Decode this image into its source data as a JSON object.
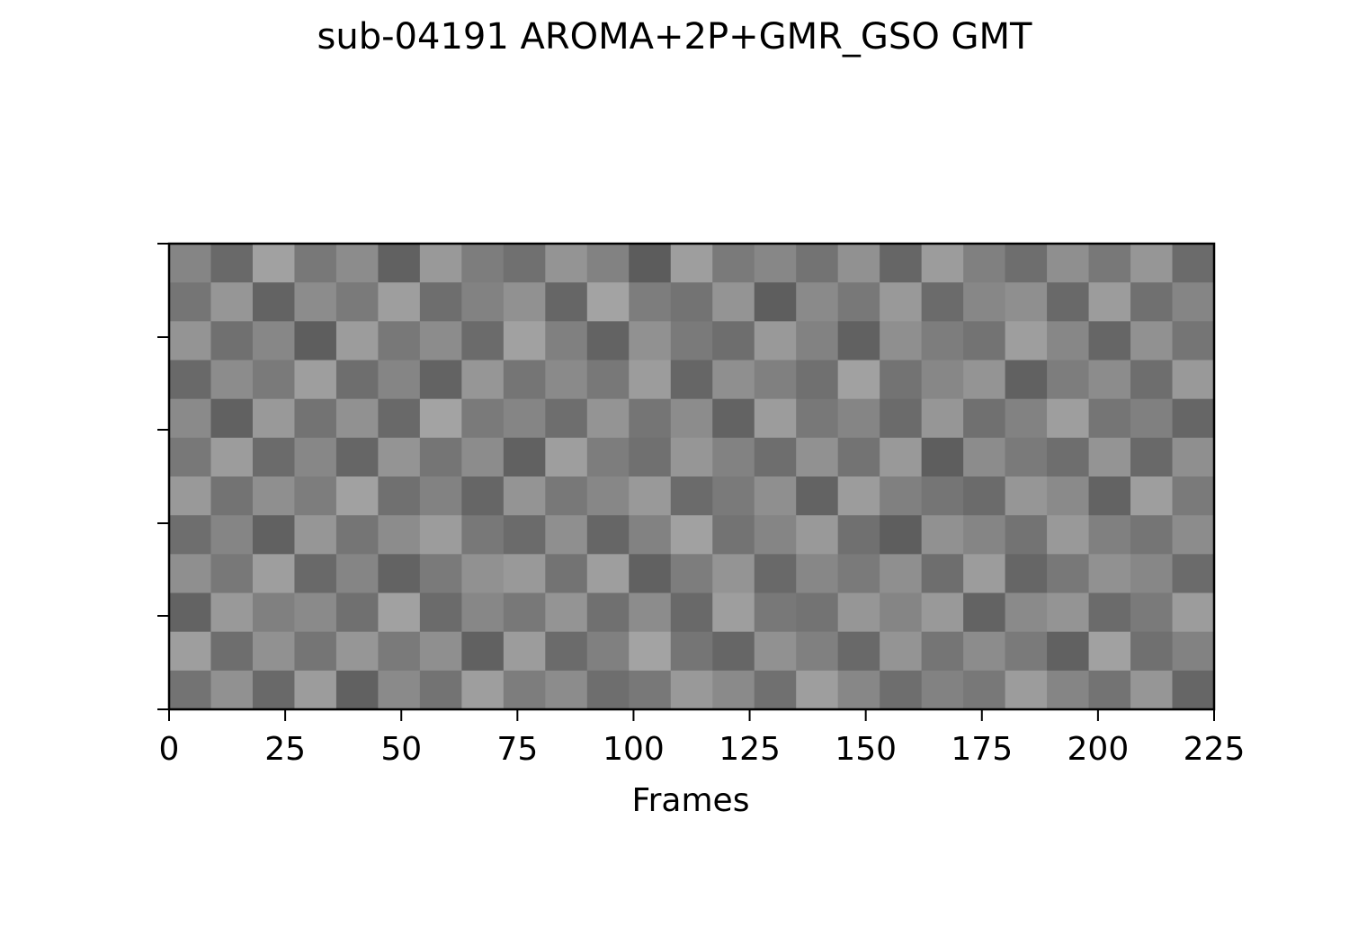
{
  "chart_data": {
    "type": "heatmap",
    "title": "sub-04191 AROMA+2P+GMR_GSO GMT",
    "xlabel": "Frames",
    "xlim": [
      0,
      225
    ],
    "xticks": [
      0,
      25,
      50,
      75,
      100,
      125,
      150,
      175,
      200,
      225
    ],
    "colormap": "gray",
    "zlim": [
      0,
      1
    ],
    "z": [
      [
        0.52,
        0.41,
        0.63,
        0.47,
        0.55,
        0.38,
        0.6,
        0.49,
        0.44,
        0.58,
        0.51,
        0.36,
        0.62,
        0.48,
        0.53,
        0.45,
        0.57,
        0.4,
        0.61,
        0.5,
        0.43,
        0.56,
        0.47,
        0.59,
        0.42
      ],
      [
        0.46,
        0.59,
        0.39,
        0.55,
        0.48,
        0.62,
        0.43,
        0.51,
        0.57,
        0.4,
        0.64,
        0.49,
        0.45,
        0.58,
        0.37,
        0.54,
        0.47,
        0.6,
        0.42,
        0.53,
        0.56,
        0.41,
        0.61,
        0.44,
        0.52
      ],
      [
        0.58,
        0.44,
        0.53,
        0.37,
        0.61,
        0.47,
        0.55,
        0.42,
        0.63,
        0.5,
        0.39,
        0.57,
        0.48,
        0.43,
        0.6,
        0.51,
        0.38,
        0.56,
        0.49,
        0.45,
        0.62,
        0.53,
        0.4,
        0.57,
        0.46
      ],
      [
        0.41,
        0.55,
        0.48,
        0.62,
        0.43,
        0.52,
        0.39,
        0.59,
        0.46,
        0.54,
        0.47,
        0.61,
        0.4,
        0.56,
        0.5,
        0.44,
        0.63,
        0.45,
        0.53,
        0.58,
        0.38,
        0.49,
        0.55,
        0.43,
        0.6
      ],
      [
        0.54,
        0.38,
        0.6,
        0.45,
        0.57,
        0.41,
        0.64,
        0.48,
        0.52,
        0.43,
        0.58,
        0.46,
        0.55,
        0.39,
        0.61,
        0.47,
        0.52,
        0.42,
        0.59,
        0.44,
        0.51,
        0.62,
        0.46,
        0.5,
        0.4
      ],
      [
        0.47,
        0.61,
        0.42,
        0.53,
        0.4,
        0.58,
        0.46,
        0.55,
        0.38,
        0.62,
        0.49,
        0.44,
        0.59,
        0.51,
        0.43,
        0.57,
        0.45,
        0.6,
        0.37,
        0.55,
        0.48,
        0.43,
        0.58,
        0.41,
        0.56
      ],
      [
        0.6,
        0.45,
        0.56,
        0.49,
        0.63,
        0.44,
        0.51,
        0.4,
        0.58,
        0.47,
        0.53,
        0.6,
        0.42,
        0.48,
        0.56,
        0.39,
        0.61,
        0.5,
        0.46,
        0.42,
        0.59,
        0.54,
        0.39,
        0.62,
        0.48
      ],
      [
        0.43,
        0.52,
        0.38,
        0.59,
        0.46,
        0.55,
        0.61,
        0.47,
        0.42,
        0.56,
        0.4,
        0.51,
        0.63,
        0.45,
        0.52,
        0.6,
        0.44,
        0.37,
        0.57,
        0.52,
        0.45,
        0.6,
        0.5,
        0.46,
        0.55
      ],
      [
        0.56,
        0.47,
        0.62,
        0.41,
        0.52,
        0.39,
        0.48,
        0.57,
        0.6,
        0.45,
        0.62,
        0.38,
        0.49,
        0.58,
        0.41,
        0.53,
        0.48,
        0.56,
        0.43,
        0.61,
        0.4,
        0.47,
        0.57,
        0.53,
        0.42
      ],
      [
        0.39,
        0.6,
        0.5,
        0.54,
        0.44,
        0.63,
        0.42,
        0.53,
        0.47,
        0.58,
        0.44,
        0.55,
        0.41,
        0.62,
        0.47,
        0.45,
        0.59,
        0.52,
        0.6,
        0.39,
        0.54,
        0.58,
        0.42,
        0.48,
        0.61
      ],
      [
        0.62,
        0.43,
        0.57,
        0.46,
        0.59,
        0.48,
        0.56,
        0.38,
        0.61,
        0.42,
        0.5,
        0.64,
        0.46,
        0.4,
        0.57,
        0.5,
        0.41,
        0.58,
        0.46,
        0.55,
        0.48,
        0.38,
        0.63,
        0.44,
        0.51
      ],
      [
        0.45,
        0.57,
        0.41,
        0.61,
        0.38,
        0.54,
        0.45,
        0.62,
        0.49,
        0.55,
        0.43,
        0.47,
        0.6,
        0.54,
        0.44,
        0.62,
        0.53,
        0.43,
        0.51,
        0.47,
        0.61,
        0.52,
        0.45,
        0.59,
        0.4
      ]
    ]
  }
}
